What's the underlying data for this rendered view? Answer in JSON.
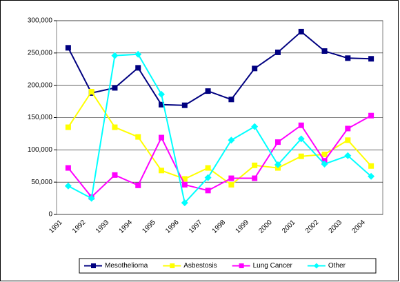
{
  "chart_data": {
    "type": "line",
    "categories": [
      "1991",
      "1992",
      "1993",
      "1994",
      "1995",
      "1996",
      "1997",
      "1998",
      "1999",
      "2000",
      "2001",
      "2002",
      "2003",
      "2004"
    ],
    "series": [
      {
        "name": "Mesothelioma",
        "color": "#000080",
        "marker": "square",
        "values": [
          258000,
          188000,
          196000,
          227000,
          170000,
          169000,
          191000,
          178000,
          226000,
          251000,
          283000,
          253000,
          242000,
          241000
        ]
      },
      {
        "name": "Asbestosis",
        "color": "#ffff00",
        "marker": "square",
        "values": [
          135000,
          190000,
          135000,
          120000,
          68000,
          55000,
          72000,
          46000,
          76000,
          72000,
          90000,
          93000,
          115000,
          75000
        ]
      },
      {
        "name": "Lung Cancer",
        "color": "#ff00ff",
        "marker": "square",
        "values": [
          72000,
          27000,
          61000,
          45000,
          119000,
          46000,
          37000,
          56000,
          56000,
          112000,
          138000,
          83000,
          133000,
          153000
        ]
      },
      {
        "name": "Other",
        "color": "#00ffff",
        "marker": "diamond",
        "values": [
          44000,
          25000,
          246000,
          248000,
          186000,
          18000,
          57000,
          115000,
          136000,
          77000,
          117000,
          78000,
          91000,
          59000
        ]
      }
    ],
    "ylim": [
      0,
      300000
    ],
    "yticks": [
      0,
      {
        "value": 50000,
        "label": "50,000"
      },
      {
        "value": 100000,
        "label": "100,000"
      },
      {
        "value": 150000,
        "label": "150,000"
      },
      {
        "value": 200000,
        "label": "200,000"
      },
      {
        "value": 250000,
        "label": "250,000"
      },
      {
        "value": 300000,
        "label": "300,000"
      }
    ],
    "grid": true,
    "legend": "bottom"
  }
}
